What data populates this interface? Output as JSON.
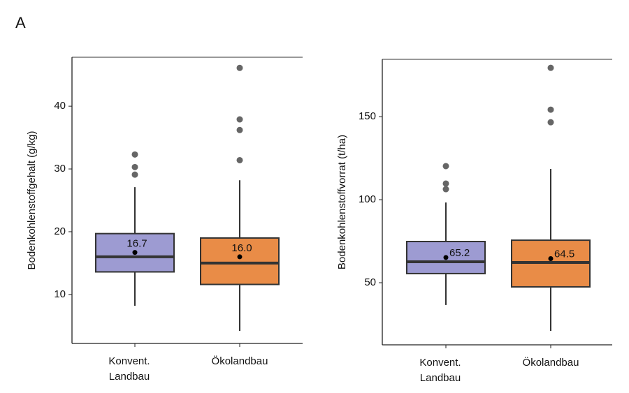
{
  "panel_label": "A",
  "chart_data": [
    {
      "type": "box",
      "ylabel": "Bodenkohlenstoffgehalt (g/kg)",
      "categories": [
        [
          "Konvent.",
          "Landbau"
        ],
        [
          "Ökolandbau"
        ]
      ],
      "ylim": [
        2.2,
        47.8
      ],
      "yticks": [
        10,
        20,
        30,
        40
      ],
      "boxes": [
        {
          "color": "#9d9bd2",
          "low": 8.2,
          "q1": 13.6,
          "median": 16.0,
          "q3": 19.7,
          "high": 27.1,
          "mean": 16.7,
          "mean_label": "16.7",
          "outliers": [
            32.3,
            30.3,
            29.1
          ]
        },
        {
          "color": "#e98c47",
          "low": 4.2,
          "q1": 11.6,
          "median": 15.0,
          "q3": 19.0,
          "high": 28.2,
          "mean": 16.0,
          "mean_label": "16.0",
          "outliers": [
            46.1,
            37.9,
            36.2,
            31.4
          ]
        }
      ]
    },
    {
      "type": "box",
      "ylabel": "Bodenkohlenstoffvorrat (t/ha)",
      "categories": [
        [
          "Konvent.",
          "Landbau"
        ],
        [
          "Ökolandbau"
        ]
      ],
      "ylim": [
        12.6,
        184.5
      ],
      "yticks": [
        50,
        100,
        150
      ],
      "boxes": [
        {
          "color": "#9d9bd2",
          "low": 36.6,
          "q1": 55.5,
          "median": 62.6,
          "q3": 74.8,
          "high": 98.3,
          "mean": 65.2,
          "mean_label": "65.2",
          "outliers": [
            120.2,
            109.7,
            106.3
          ]
        },
        {
          "color": "#e98c47",
          "low": 21.0,
          "q1": 47.5,
          "median": 62.2,
          "q3": 75.6,
          "high": 118.5,
          "mean": 64.5,
          "mean_label": "64.5",
          "outliers": [
            179.4,
            154.2,
            146.6
          ]
        }
      ]
    }
  ]
}
